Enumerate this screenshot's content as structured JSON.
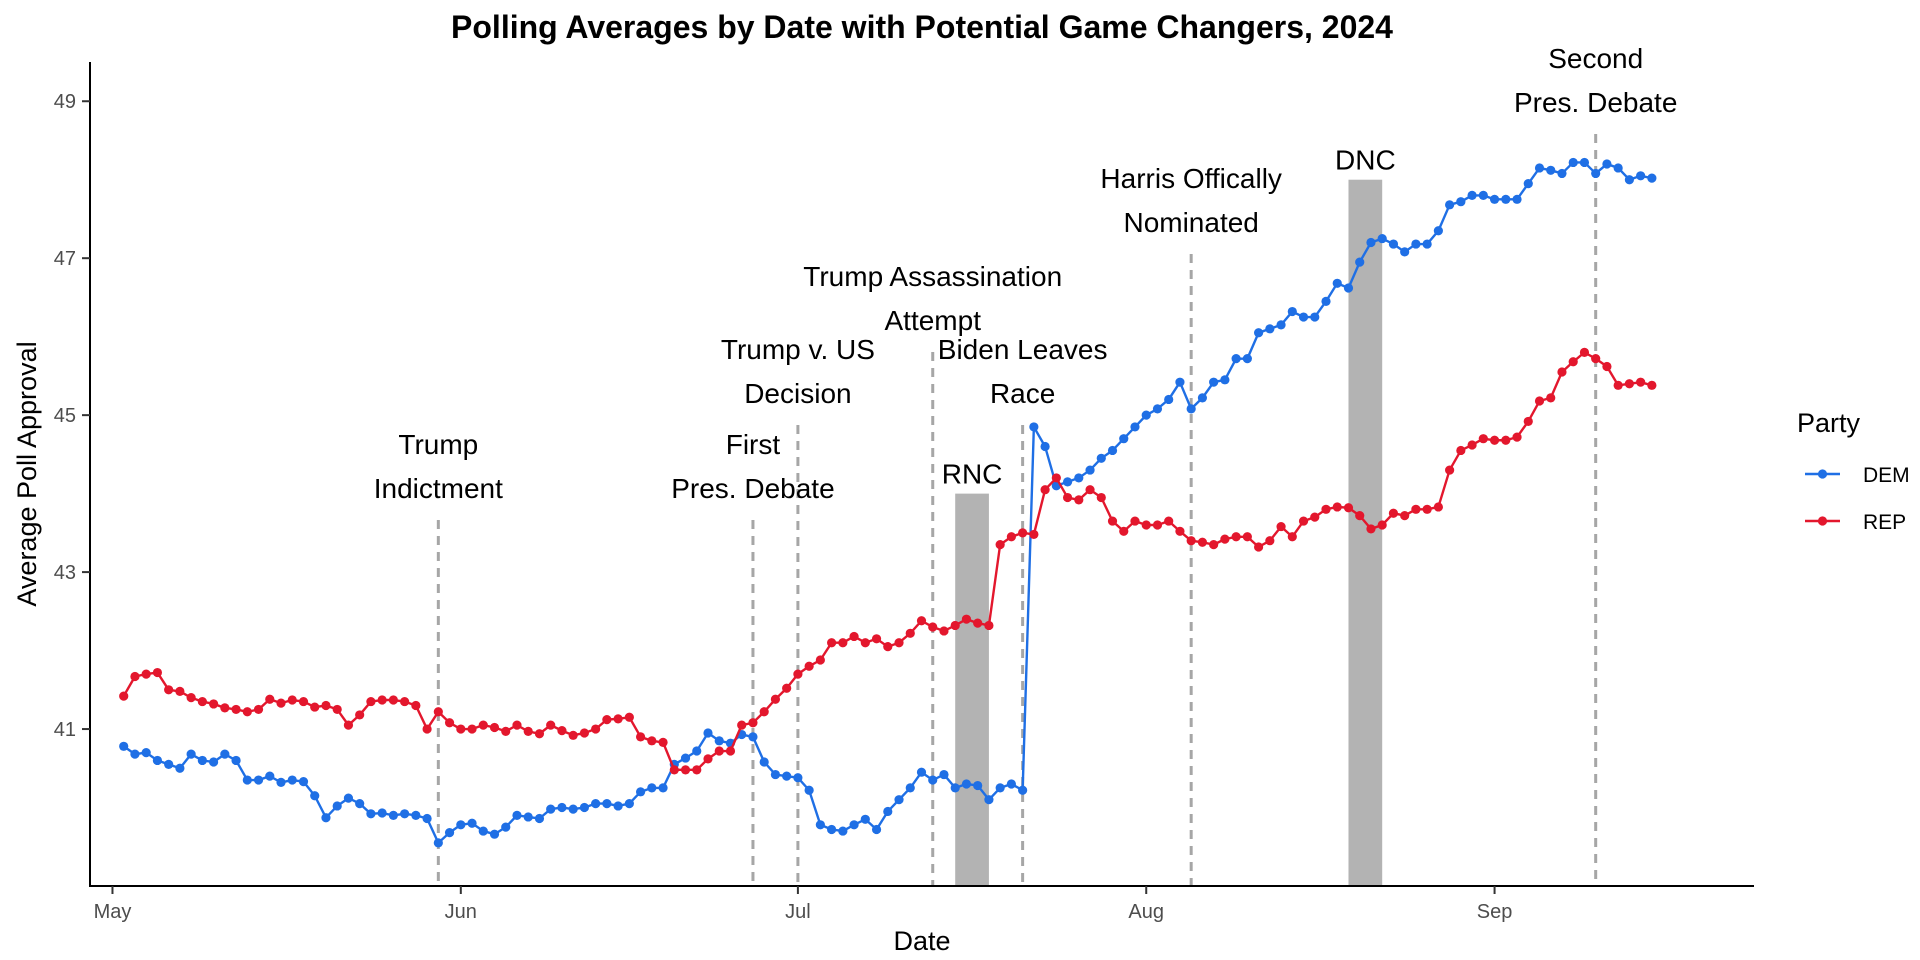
{
  "chart_data": {
    "type": "line",
    "title": "Polling Averages by Date with Potential Game Changers, 2024",
    "xlabel": "Date",
    "ylabel": "Average Poll Approval",
    "x_range": [
      "2024-04-29",
      "2024-09-24"
    ],
    "ylim": [
      39.0,
      49.5
    ],
    "y_ticks": [
      41,
      43,
      45,
      47,
      49
    ],
    "x_ticks": [
      {
        "date": "2024-05-01",
        "label": "May"
      },
      {
        "date": "2024-06-01",
        "label": "Jun"
      },
      {
        "date": "2024-07-01",
        "label": "Jul"
      },
      {
        "date": "2024-08-01",
        "label": "Aug"
      },
      {
        "date": "2024-09-01",
        "label": "Sep"
      }
    ],
    "grid": false,
    "legend": {
      "title": "Party",
      "placement": "right"
    },
    "start_date": "2024-05-02",
    "series": [
      {
        "name": "DEM",
        "color": "#1f6fe5",
        "values": [
          40.78,
          40.68,
          40.7,
          40.6,
          40.55,
          40.5,
          40.68,
          40.6,
          40.58,
          40.68,
          40.6,
          40.35,
          40.35,
          40.4,
          40.32,
          40.35,
          40.33,
          40.15,
          39.87,
          40.02,
          40.12,
          40.05,
          39.92,
          39.93,
          39.9,
          39.92,
          39.9,
          39.86,
          39.55,
          39.68,
          39.78,
          39.8,
          39.7,
          39.66,
          39.75,
          39.9,
          39.88,
          39.86,
          39.98,
          40.0,
          39.98,
          40.0,
          40.05,
          40.05,
          40.02,
          40.05,
          40.2,
          40.25,
          40.25,
          40.55,
          40.63,
          40.72,
          40.95,
          40.85,
          40.82,
          40.93,
          40.9,
          40.58,
          40.42,
          40.4,
          40.38,
          40.22,
          39.78,
          39.72,
          39.7,
          39.78,
          39.85,
          39.72,
          39.95,
          40.1,
          40.25,
          40.45,
          40.35,
          40.42,
          40.25,
          40.3,
          40.28,
          40.1,
          40.25,
          40.3,
          40.22,
          44.85,
          44.6,
          44.1,
          44.15,
          44.2,
          44.3,
          44.45,
          44.55,
          44.7,
          44.85,
          45.0,
          45.08,
          45.2,
          45.42,
          45.08,
          45.22,
          45.42,
          45.45,
          45.72,
          45.72,
          46.05,
          46.1,
          46.15,
          46.32,
          46.25,
          46.25,
          46.45,
          46.68,
          46.62,
          46.95,
          47.2,
          47.25,
          47.18,
          47.08,
          47.18,
          47.18,
          47.35,
          47.68,
          47.72,
          47.8,
          47.8,
          47.75,
          47.75,
          47.75,
          47.95,
          48.15,
          48.12,
          48.08,
          48.22,
          48.22,
          48.08,
          48.2,
          48.15,
          48.0,
          48.05,
          48.02
        ]
      },
      {
        "name": "REP",
        "color": "#e3172d",
        "values": [
          41.42,
          41.67,
          41.7,
          41.72,
          41.5,
          41.48,
          41.4,
          41.35,
          41.32,
          41.27,
          41.25,
          41.22,
          41.25,
          41.38,
          41.33,
          41.37,
          41.35,
          41.28,
          41.3,
          41.25,
          41.05,
          41.18,
          41.35,
          41.37,
          41.37,
          41.35,
          41.3,
          41.0,
          41.22,
          41.08,
          41.0,
          41.0,
          41.05,
          41.02,
          40.97,
          41.05,
          40.97,
          40.94,
          41.05,
          40.98,
          40.92,
          40.95,
          41.0,
          41.12,
          41.13,
          41.15,
          40.9,
          40.85,
          40.83,
          40.48,
          40.48,
          40.48,
          40.62,
          40.72,
          40.72,
          41.05,
          41.08,
          41.22,
          41.38,
          41.52,
          41.7,
          41.8,
          41.88,
          42.1,
          42.1,
          42.18,
          42.1,
          42.15,
          42.05,
          42.1,
          42.22,
          42.38,
          42.3,
          42.25,
          42.32,
          42.4,
          42.35,
          42.32,
          43.35,
          43.45,
          43.5,
          43.48,
          44.05,
          44.2,
          43.95,
          43.92,
          44.05,
          43.95,
          43.65,
          43.52,
          43.65,
          43.6,
          43.6,
          43.65,
          43.52,
          43.4,
          43.38,
          43.35,
          43.42,
          43.45,
          43.45,
          43.32,
          43.4,
          43.58,
          43.45,
          43.65,
          43.7,
          43.8,
          43.83,
          43.82,
          43.72,
          43.55,
          43.6,
          43.75,
          43.72,
          43.8,
          43.8,
          43.83,
          44.3,
          44.55,
          44.62,
          44.7,
          44.68,
          44.68,
          44.72,
          44.92,
          45.18,
          45.22,
          45.55,
          45.68,
          45.8,
          45.72,
          45.62,
          45.38,
          45.4,
          45.42,
          45.38
        ]
      }
    ],
    "vertical_markers": [
      {
        "date": "2024-05-30",
        "label_lines": [
          "Trump",
          "Indictment"
        ]
      },
      {
        "date": "2024-06-27",
        "label_lines": [
          "First",
          "Pres. Debate"
        ]
      },
      {
        "date": "2024-07-01",
        "label_lines": [
          "Trump v. US",
          "Decision"
        ]
      },
      {
        "date": "2024-07-13",
        "label_lines": [
          "Trump Assassination",
          "Attempt"
        ]
      },
      {
        "date": "2024-07-21",
        "label_lines": [
          "Biden Leaves",
          "Race"
        ]
      },
      {
        "date": "2024-08-05",
        "label_lines": [
          "Harris Offically",
          "Nominated"
        ]
      },
      {
        "date": "2024-09-10",
        "label_lines": [
          "Second",
          "Pres. Debate"
        ]
      }
    ],
    "shaded_periods": [
      {
        "start": "2024-07-15",
        "end": "2024-07-18",
        "label": "RNC",
        "top": 44.0
      },
      {
        "start": "2024-08-19",
        "end": "2024-08-22",
        "label": "DNC",
        "top": 48.0
      }
    ]
  }
}
